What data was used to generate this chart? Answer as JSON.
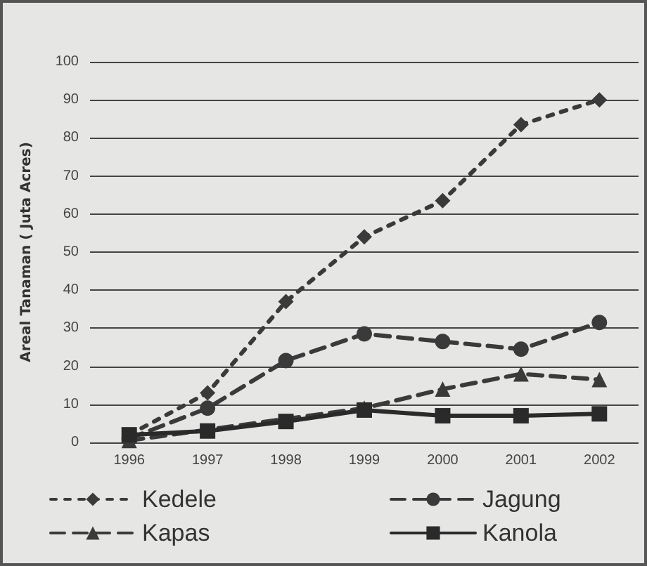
{
  "chart_data": {
    "type": "line",
    "ylabel": "Areal Tanaman ( Juta Acres)",
    "categories": [
      "1996",
      "1997",
      "1998",
      "1999",
      "2000",
      "2001",
      "2002"
    ],
    "series": [
      {
        "name": "Kedele",
        "color": "#3a3a3a",
        "marker": "diamond",
        "line_style": "dotted",
        "values": [
          2,
          13,
          37,
          54,
          63.5,
          83.5,
          90
        ]
      },
      {
        "name": "Jagung",
        "color": "#3a3a3a",
        "marker": "circle",
        "line_style": "dashed",
        "values": [
          1,
          9,
          21.5,
          28.5,
          26.5,
          24.5,
          31.5
        ]
      },
      {
        "name": "Kapas",
        "color": "#3a3a3a",
        "marker": "triangle",
        "line_style": "dashed",
        "values": [
          0.5,
          null,
          null,
          9,
          14,
          18,
          16.5
        ]
      },
      {
        "name": "Kanola",
        "color": "#2a2a2a",
        "marker": "square",
        "line_style": "solid",
        "values": [
          2,
          3,
          5.5,
          8.5,
          7,
          7,
          7.5
        ]
      }
    ],
    "ylim": [
      0,
      100
    ],
    "yticks": [
      0,
      10,
      20,
      30,
      40,
      50,
      60,
      70,
      80,
      90,
      100
    ],
    "grid": "y",
    "legend": "bottom"
  }
}
